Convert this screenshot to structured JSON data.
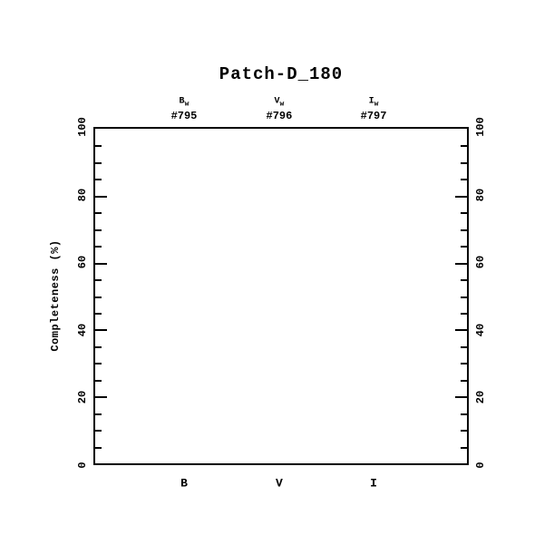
{
  "title": "Patch-D_180",
  "colors": {
    "foreground": "#000000",
    "background": "#ffffff"
  },
  "chart_data": {
    "type": "scatter",
    "title": "Patch-D_180",
    "xlabel": "",
    "ylabel": "Completeness (%)",
    "ylim": [
      0,
      100
    ],
    "y_major_ticks": [
      0,
      20,
      40,
      60,
      80,
      100
    ],
    "y_minor_step": 5,
    "x_categories": [
      "B",
      "V",
      "I"
    ],
    "top_annotations": [
      {
        "band": "B",
        "subscript": "w",
        "field_id": "#795"
      },
      {
        "band": "V",
        "subscript": "w",
        "field_id": "#796"
      },
      {
        "band": "I",
        "subscript": "w",
        "field_id": "#797"
      }
    ],
    "series": [],
    "grid": false,
    "legend": null,
    "notes": "axes frame only; no data points plotted"
  }
}
